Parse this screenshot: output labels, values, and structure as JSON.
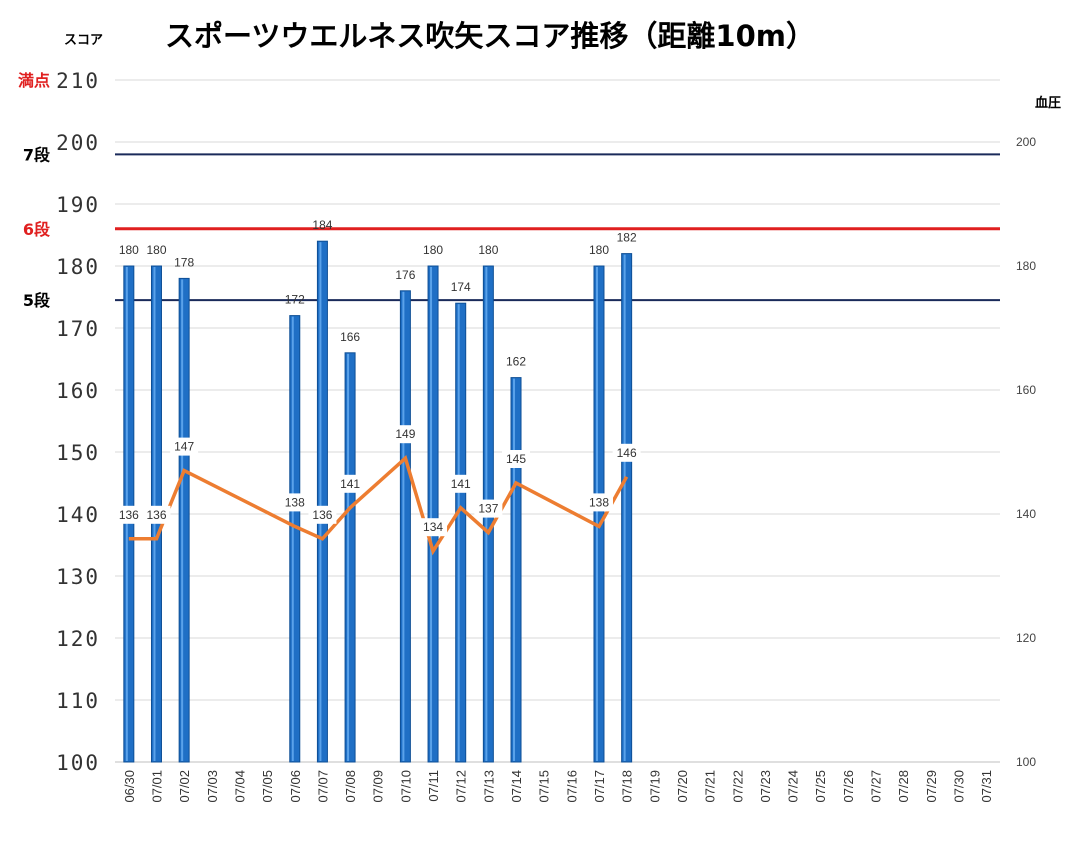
{
  "chart_data": {
    "type": "bar",
    "title": "スポーツウエルネス吹矢スコア推移（距離10m）",
    "ylabel": "スコア",
    "y2label": "血圧",
    "ylim": [
      100,
      210
    ],
    "y2lim": [
      100,
      210
    ],
    "yticks": [
      "100",
      "110",
      "120",
      "130",
      "140",
      "150",
      "160",
      "170",
      "180",
      "190",
      "200",
      "210"
    ],
    "y2ticks": [
      "100",
      "120",
      "140",
      "160",
      "180",
      "200"
    ],
    "categories": [
      "06/30",
      "07/01",
      "07/02",
      "07/03",
      "07/04",
      "07/05",
      "07/06",
      "07/07",
      "07/08",
      "07/09",
      "07/10",
      "07/11",
      "07/12",
      "07/13",
      "07/14",
      "07/15",
      "07/16",
      "07/17",
      "07/18",
      "07/19",
      "07/20",
      "07/21",
      "07/22",
      "07/23",
      "07/24",
      "07/25",
      "07/26",
      "07/27",
      "07/28",
      "07/29",
      "07/30",
      "07/31"
    ],
    "grid": true,
    "series": [
      {
        "kind": "bar",
        "axis": "left",
        "color": "#1f6fc5",
        "values": [
          180,
          180,
          178,
          null,
          null,
          null,
          172,
          184,
          166,
          null,
          176,
          180,
          174,
          180,
          162,
          null,
          null,
          180,
          182,
          null,
          null,
          null,
          null,
          null,
          null,
          null,
          null,
          null,
          null,
          null,
          null,
          null
        ],
        "labels": [
          "180",
          "180",
          "178",
          "",
          "",
          "",
          "172",
          "184",
          "166",
          "",
          "176",
          "180",
          "174",
          "180",
          "162",
          "",
          "",
          "180",
          "182",
          "",
          "",
          "",
          "",
          "",
          "",
          "",
          "",
          "",
          "",
          "",
          "",
          ""
        ]
      },
      {
        "kind": "line",
        "axis": "right",
        "color": "#ed7d31",
        "values": [
          136,
          136,
          147,
          null,
          null,
          null,
          138,
          136,
          141,
          null,
          149,
          134,
          141,
          137,
          145,
          null,
          null,
          138,
          146,
          null,
          null,
          null,
          null,
          null,
          null,
          null,
          null,
          null,
          null,
          null,
          null,
          null
        ],
        "labels": [
          "136",
          "136",
          "147",
          "",
          "",
          "",
          "138",
          "136",
          "141",
          "",
          "149",
          "134",
          "141",
          "137",
          "145",
          "",
          "",
          "138",
          "146",
          "",
          "",
          "",
          "",
          "",
          "",
          "",
          "",
          "",
          "",
          "",
          "",
          ""
        ]
      }
    ],
    "reference_lines": [
      {
        "label": "満点",
        "value": 210,
        "color": "#e02020",
        "line": false
      },
      {
        "label": "7段",
        "value": 198,
        "color": "#000000",
        "line_color": "#1a2a5a",
        "line": true
      },
      {
        "label": "6段",
        "value": 186,
        "color": "#e02020",
        "line_color": "#e02020",
        "line": true
      },
      {
        "label": "5段",
        "value": 174.5,
        "color": "#000000",
        "line_color": "#1a2a5a",
        "line": true
      }
    ]
  }
}
